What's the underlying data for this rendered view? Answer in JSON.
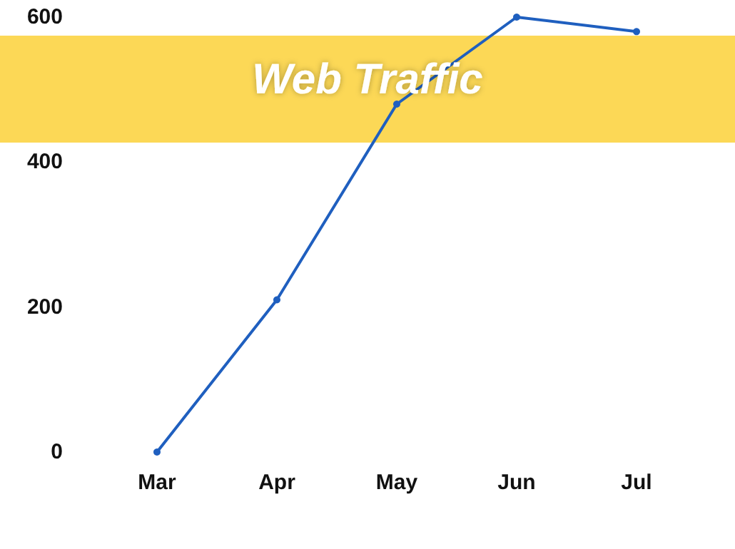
{
  "chart_data": {
    "type": "line",
    "title": "Web Traffic",
    "categories": [
      "Mar",
      "Apr",
      "May",
      "Jun",
      "Jul"
    ],
    "series": [
      {
        "color": "#1f5fbf",
        "values": [
          0,
          210,
          480,
          600,
          580
        ]
      }
    ],
    "ylim": [
      0,
      600
    ],
    "yticks": [
      0,
      200,
      400,
      600
    ],
    "grid": false,
    "marker": "circle",
    "line_style": "solid"
  }
}
